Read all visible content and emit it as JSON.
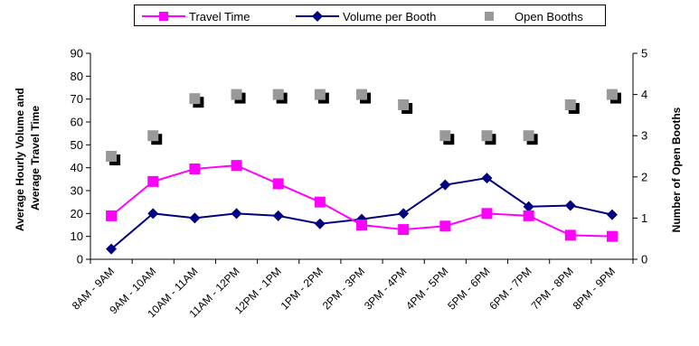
{
  "chart_data": {
    "type": "line",
    "categories": [
      "8AM - 9AM",
      "9AM - 10AM",
      "10AM - 11AM",
      "11AM - 12PM",
      "12PM - 1PM",
      "1PM - 2PM",
      "2PM - 3PM",
      "3PM - 4PM",
      "4PM - 5PM",
      "5PM - 6PM",
      "6PM - 7PM",
      "7PM - 8PM",
      "8PM - 9PM"
    ],
    "series": [
      {
        "name": "Travel Time",
        "axis": "left",
        "marker": "square",
        "color": "#ff00ff",
        "values": [
          19,
          34,
          39.5,
          41,
          33,
          25,
          15,
          13,
          14.5,
          20,
          19,
          10.5,
          10
        ]
      },
      {
        "name": "Volume per Booth",
        "axis": "left",
        "marker": "diamond",
        "color": "#000080",
        "values": [
          4.5,
          20,
          18,
          20,
          19,
          15.5,
          17.5,
          20,
          32.5,
          35.5,
          23,
          23.5,
          19.5
        ]
      },
      {
        "name": "Open Booths",
        "axis": "right",
        "marker": "square",
        "color": "#999999",
        "line": false,
        "values": [
          2.5,
          3,
          3.9,
          4,
          4,
          4,
          4,
          3.75,
          3,
          3,
          3,
          3.75,
          4
        ]
      }
    ],
    "ylabel": "Average Hourly Volume and Average Travel Time",
    "ylabel_lines": [
      "Average Hourly Volume and",
      "Average Travel Time"
    ],
    "y2label": "Number of Open Booths",
    "ylim": [
      0,
      90
    ],
    "y2lim": [
      0,
      5
    ],
    "yticks": [
      0,
      10,
      20,
      30,
      40,
      50,
      60,
      70,
      80,
      90
    ],
    "y2ticks": [
      0,
      1,
      2,
      3,
      4,
      5
    ],
    "legend": "top",
    "grid": false
  }
}
